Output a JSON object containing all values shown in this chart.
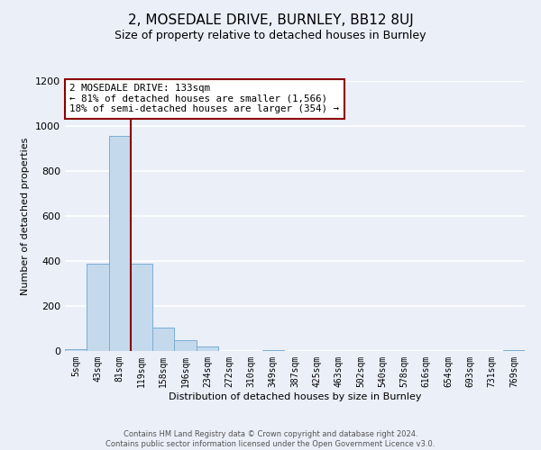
{
  "title": "2, MOSEDALE DRIVE, BURNLEY, BB12 8UJ",
  "subtitle": "Size of property relative to detached houses in Burnley",
  "xlabel": "Distribution of detached houses by size in Burnley",
  "ylabel": "Number of detached properties",
  "bar_labels": [
    "5sqm",
    "43sqm",
    "81sqm",
    "119sqm",
    "158sqm",
    "196sqm",
    "234sqm",
    "272sqm",
    "310sqm",
    "349sqm",
    "387sqm",
    "425sqm",
    "463sqm",
    "502sqm",
    "540sqm",
    "578sqm",
    "616sqm",
    "654sqm",
    "693sqm",
    "731sqm",
    "769sqm"
  ],
  "bar_values": [
    10,
    390,
    955,
    390,
    105,
    50,
    20,
    0,
    0,
    5,
    0,
    0,
    0,
    0,
    0,
    0,
    0,
    0,
    0,
    0,
    5
  ],
  "bar_color": "#c5d9ed",
  "bar_edge_color": "#7aadd4",
  "vline_x": 3,
  "vline_color": "#8b0000",
  "annotation_text": "2 MOSEDALE DRIVE: 133sqm\n← 81% of detached houses are smaller (1,566)\n18% of semi-detached houses are larger (354) →",
  "annotation_box_color": "#ffffff",
  "annotation_box_edge_color": "#8b0000",
  "ylim": [
    0,
    1200
  ],
  "yticks": [
    0,
    200,
    400,
    600,
    800,
    1000,
    1200
  ],
  "background_color": "#eaeff8",
  "grid_color": "#ffffff",
  "footer_line1": "Contains HM Land Registry data © Crown copyright and database right 2024.",
  "footer_line2": "Contains public sector information licensed under the Open Government Licence v3.0."
}
